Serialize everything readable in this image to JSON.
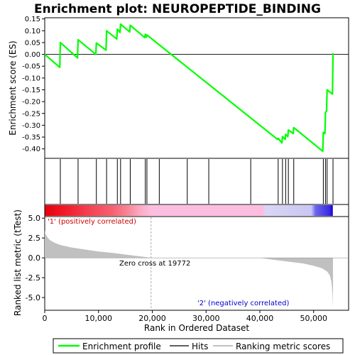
{
  "chart_data": [
    {
      "type": "line",
      "title": "Enrichment plot: NEUROPEPTIDE_BINDING",
      "ylabel": "Enrichment score (ES)",
      "xlim": [
        0,
        56500
      ],
      "ylim": [
        -0.44,
        0.155
      ],
      "yticks": [
        0.15,
        0.1,
        0.05,
        0.0,
        -0.05,
        -0.1,
        -0.15,
        -0.2,
        -0.25,
        -0.3,
        -0.35,
        -0.4
      ],
      "ytick_labels": [
        "0.15",
        "0.10",
        "0.05",
        "0.00",
        "-0.05",
        "-0.10",
        "-0.15",
        "-0.20",
        "-0.25",
        "-0.30",
        "-0.35",
        "-0.40"
      ],
      "grid": false,
      "series": [
        {
          "name": "Enrichment profile",
          "color": "#00ff00",
          "x": [
            0,
            2800,
            2900,
            6100,
            6200,
            9500,
            9600,
            11400,
            11500,
            13400,
            13500,
            14000,
            14100,
            15800,
            15900,
            18600,
            18700,
            18900,
            19000,
            43300,
            43400,
            44100,
            44200,
            44700,
            44800,
            45200,
            45300,
            46200,
            46300,
            51700,
            51800,
            52100,
            52200,
            52400,
            52500,
            53500,
            53600
          ],
          "y": [
            0.0,
            -0.055,
            0.05,
            -0.015,
            0.062,
            0.0,
            0.048,
            0.018,
            0.1,
            0.065,
            0.107,
            0.093,
            0.128,
            0.095,
            0.123,
            0.071,
            0.085,
            0.073,
            0.082,
            -0.36,
            -0.355,
            -0.375,
            -0.348,
            -0.36,
            -0.338,
            -0.348,
            -0.32,
            -0.335,
            -0.31,
            -0.41,
            -0.33,
            -0.335,
            -0.245,
            -0.24,
            -0.15,
            -0.168,
            0.005
          ]
        }
      ]
    },
    {
      "type": "scatter",
      "name": "Hits",
      "hits_x": [
        2900,
        6200,
        9600,
        11500,
        13500,
        14100,
        15900,
        18700,
        19000,
        21300,
        26500,
        30500,
        38300,
        43400,
        44200,
        44800,
        45300,
        46300,
        51800,
        52200,
        52500,
        53600
      ]
    },
    {
      "type": "heatmap",
      "labels": [
        "'1' (positively correlated)",
        "'2' (negatively correlated)"
      ],
      "stops": [
        {
          "x": 0,
          "color": "#e8000a"
        },
        {
          "x": 4000,
          "color": "#f01d2a"
        },
        {
          "x": 8000,
          "color": "#f44050"
        },
        {
          "x": 12500,
          "color": "#f66070"
        },
        {
          "x": 15500,
          "color": "#f88898"
        },
        {
          "x": 17500,
          "color": "#fba8c0"
        },
        {
          "x": 19772,
          "color": "#fdbde0"
        },
        {
          "x": 40500,
          "color": "#fdbde0"
        },
        {
          "x": 41000,
          "color": "#d9d6f6"
        },
        {
          "x": 49500,
          "color": "#c9c6f2"
        },
        {
          "x": 50300,
          "color": "#6a66ee"
        },
        {
          "x": 52800,
          "color": "#3a2ee0"
        },
        {
          "x": 53500,
          "color": "#1a00d0"
        }
      ]
    },
    {
      "type": "area",
      "ylabel": "Ranked list metric (tTest)",
      "xlabel": "Rank in Ordered Dataset",
      "xlim": [
        0,
        56500
      ],
      "ylim": [
        -6.6,
        5.2
      ],
      "xticks": [
        0,
        10000,
        20000,
        30000,
        40000,
        50000
      ],
      "xtick_labels": [
        "0",
        "10,000",
        "20,000",
        "30,000",
        "40,000",
        "50,000"
      ],
      "yticks": [
        5.0,
        2.5,
        0.0,
        -2.5,
        -5.0
      ],
      "ytick_labels": [
        "5.0",
        "2.5",
        "0.0",
        "-2.5",
        "-5.0"
      ],
      "zero_cross": 19772,
      "zero_cross_label": "Zero cross at 19772",
      "color": "#c0c0c0",
      "x": [
        0,
        100,
        500,
        1000,
        2000,
        3000,
        5000,
        8000,
        10000,
        13000,
        15000,
        17000,
        19000,
        19772,
        40000,
        42000,
        45000,
        48000,
        50000,
        51500,
        52500,
        53000,
        53300,
        53500,
        53600
      ],
      "y": [
        3.5,
        3.1,
        2.6,
        2.2,
        1.85,
        1.6,
        1.3,
        1.0,
        0.8,
        0.6,
        0.42,
        0.25,
        0.08,
        0.0,
        0.0,
        -0.2,
        -0.45,
        -0.7,
        -1.0,
        -1.3,
        -1.7,
        -2.2,
        -3.0,
        -4.5,
        -6.3
      ]
    }
  ],
  "legend": {
    "items": [
      {
        "label": "Enrichment profile",
        "color": "#00ff00"
      },
      {
        "label": "Hits",
        "color": "#000000"
      },
      {
        "label": "Ranking metric scores",
        "color": "#c0c0c0"
      }
    ]
  }
}
